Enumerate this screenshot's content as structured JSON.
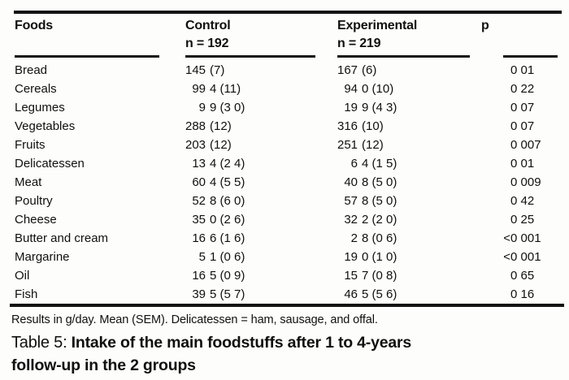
{
  "table": {
    "columns": {
      "foods": "Foods",
      "control_label": "Control",
      "control_n": "n = 192",
      "experimental_label": "Experimental",
      "experimental_n": "n = 219",
      "p_label": "p"
    },
    "rows": [
      {
        "food": "Bread",
        "control": [
          "145",
          "(7)"
        ],
        "experimental": [
          "167",
          "(6)"
        ],
        "p": [
          "",
          "0 01"
        ]
      },
      {
        "food": "Cereals",
        "control": [
          "99",
          "4 (11)"
        ],
        "experimental": [
          "94",
          "0 (10)"
        ],
        "p": [
          "",
          "0 22"
        ]
      },
      {
        "food": "Legumes",
        "control": [
          "9",
          "9 (3 0)"
        ],
        "experimental": [
          "19",
          "9 (4 3)"
        ],
        "p": [
          "",
          "0 07"
        ]
      },
      {
        "food": "Vegetables",
        "control": [
          "288",
          "(12)"
        ],
        "experimental": [
          "316",
          "(10)"
        ],
        "p": [
          "",
          "0 07"
        ]
      },
      {
        "food": "Fruits",
        "control": [
          "203",
          "(12)"
        ],
        "experimental": [
          "251",
          "(12)"
        ],
        "p": [
          "",
          "0 007"
        ]
      },
      {
        "food": "Delicatessen",
        "control": [
          "13",
          "4 (2 4)"
        ],
        "experimental": [
          "6",
          "4 (1 5)"
        ],
        "p": [
          "",
          "0 01"
        ]
      },
      {
        "food": "Meat",
        "control": [
          "60",
          "4 (5 5)"
        ],
        "experimental": [
          "40",
          "8 (5 0)"
        ],
        "p": [
          "",
          "0 009"
        ]
      },
      {
        "food": "Poultry",
        "control": [
          "52",
          "8 (6 0)"
        ],
        "experimental": [
          "57",
          "8 (5 0)"
        ],
        "p": [
          "",
          "0 42"
        ]
      },
      {
        "food": "Cheese",
        "control": [
          "35",
          "0 (2 6)"
        ],
        "experimental": [
          "32",
          "2 (2 0)"
        ],
        "p": [
          "",
          "0 25"
        ]
      },
      {
        "food": "Butter and cream",
        "control": [
          "16",
          "6 (1 6)"
        ],
        "experimental": [
          "2",
          "8 (0 6)"
        ],
        "p": [
          "<",
          "0 001"
        ]
      },
      {
        "food": "Margarine",
        "control": [
          "5",
          "1 (0 6)"
        ],
        "experimental": [
          "19",
          "0 (1 0)"
        ],
        "p": [
          "<",
          "0 001"
        ]
      },
      {
        "food": "Oil",
        "control": [
          "16",
          "5 (0 9)"
        ],
        "experimental": [
          "15",
          "7 (0 8)"
        ],
        "p": [
          "",
          "0 65"
        ]
      },
      {
        "food": "Fish",
        "control": [
          "39",
          "5 (5 7)"
        ],
        "experimental": [
          "46",
          "5 (5 6)"
        ],
        "p": [
          "",
          "0 16"
        ]
      }
    ],
    "footnote": "Results in g/day. Mean (SEM). Delicatessen = ham, sausage, and offal."
  },
  "caption": {
    "label": "Table 5:",
    "line1": "Intake of the main foodstuffs after 1 to 4-years",
    "line2": "follow-up in the 2 groups"
  },
  "colors": {
    "text": "#101010",
    "background": "#fdfdfb",
    "rule": "#121212"
  }
}
